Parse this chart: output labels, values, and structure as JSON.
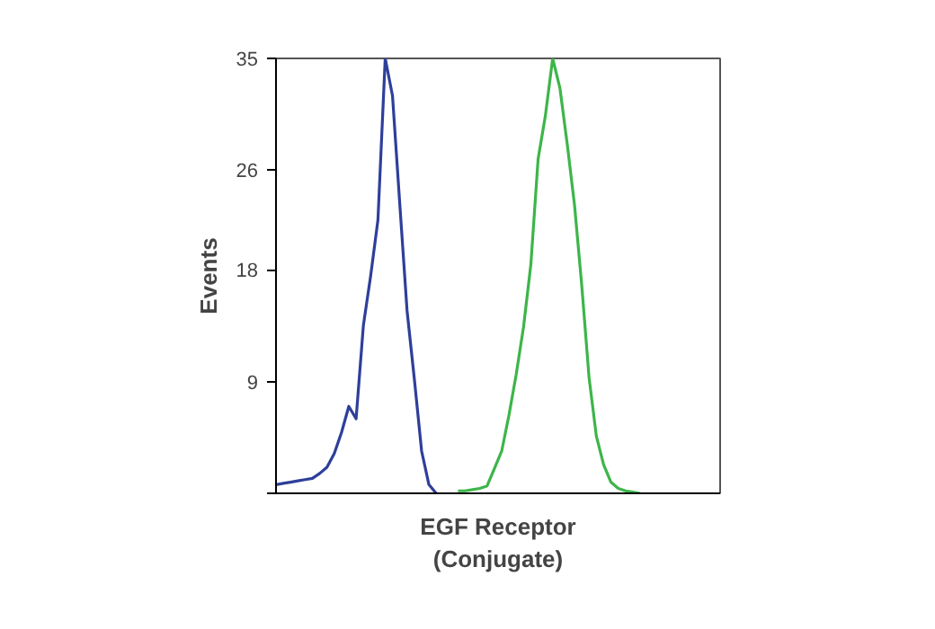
{
  "chart_data": {
    "type": "line",
    "xlabel": "EGF Receptor\n(Conjugate)",
    "ylabel": "Events",
    "categories": [
      null,
      null,
      null,
      null,
      null,
      null,
      null,
      null,
      null,
      null,
      null,
      null,
      null,
      null,
      null,
      null,
      null,
      null,
      null,
      null,
      null,
      null,
      null,
      null,
      null,
      null,
      null,
      null,
      null,
      null,
      null,
      null,
      null,
      null,
      null,
      null,
      null,
      null,
      null,
      null,
      null,
      null,
      null,
      null,
      null,
      null,
      null,
      null,
      null,
      null,
      null,
      null,
      null,
      null,
      null,
      null,
      null,
      null,
      null,
      null,
      null,
      null
    ],
    "series": [
      {
        "color": "#2e3f9a",
        "values": [
          0.7,
          0.8,
          0.9,
          1.0,
          1.1,
          1.2,
          1.6,
          2.1,
          3.2,
          4.9,
          7.0,
          6.0,
          13.5,
          17.5,
          22,
          35,
          32,
          23.3,
          14.7,
          9.2,
          3.4,
          0.7,
          0,
          null,
          null,
          null,
          null,
          null,
          null,
          null,
          null,
          null,
          null,
          null,
          null,
          null,
          null,
          null,
          null,
          null,
          null,
          null,
          null,
          null,
          null,
          null,
          null,
          null,
          null,
          null,
          null,
          null,
          null,
          null,
          null,
          null,
          null,
          null,
          null,
          null,
          null,
          null
        ]
      },
      {
        "color": "#3db54a",
        "values": [
          null,
          null,
          null,
          null,
          null,
          null,
          null,
          null,
          null,
          null,
          null,
          null,
          null,
          null,
          null,
          null,
          null,
          null,
          null,
          null,
          null,
          null,
          null,
          null,
          null,
          0.2,
          0.2,
          0.3,
          0.4,
          0.6,
          2.0,
          3.4,
          6.3,
          9.6,
          13.4,
          18.4,
          26.9,
          30.4,
          35,
          32.6,
          28.1,
          23.2,
          16.7,
          9.3,
          4.6,
          2.3,
          0.9,
          0.4,
          0.2,
          0.1,
          0,
          null,
          null,
          null,
          null,
          null,
          null,
          null,
          null,
          null,
          null,
          null
        ]
      }
    ],
    "ylim": [
      0,
      35
    ],
    "yticks": [
      {
        "value": 0,
        "label": null
      },
      9,
      18,
      26,
      35
    ],
    "grid": false
  }
}
